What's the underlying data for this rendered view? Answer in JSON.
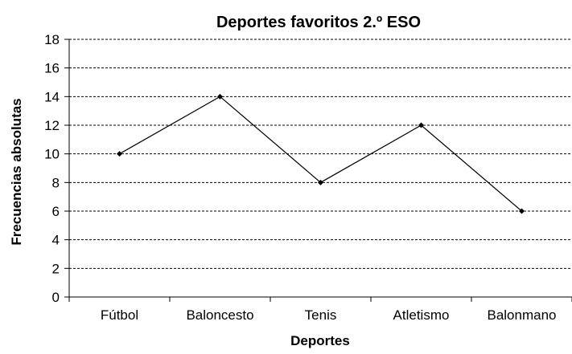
{
  "chart_data": {
    "type": "line",
    "title": "Deportes favoritos 2.º ESO",
    "xlabel": "Deportes",
    "ylabel": "Frecuencias absolutas",
    "categories": [
      "Fútbol",
      "Baloncesto",
      "Tenis",
      "Atletismo",
      "Balonmano"
    ],
    "series": [
      {
        "values": [
          10,
          14,
          8,
          12,
          6
        ]
      }
    ],
    "ylim": [
      0,
      18
    ],
    "yticks": [
      0,
      2,
      4,
      6,
      8,
      10,
      12,
      14,
      16,
      18
    ],
    "grid": true,
    "grid_style": "dashed-horizontal",
    "legend": false,
    "line_color": "#000000",
    "marker": "diamond"
  }
}
